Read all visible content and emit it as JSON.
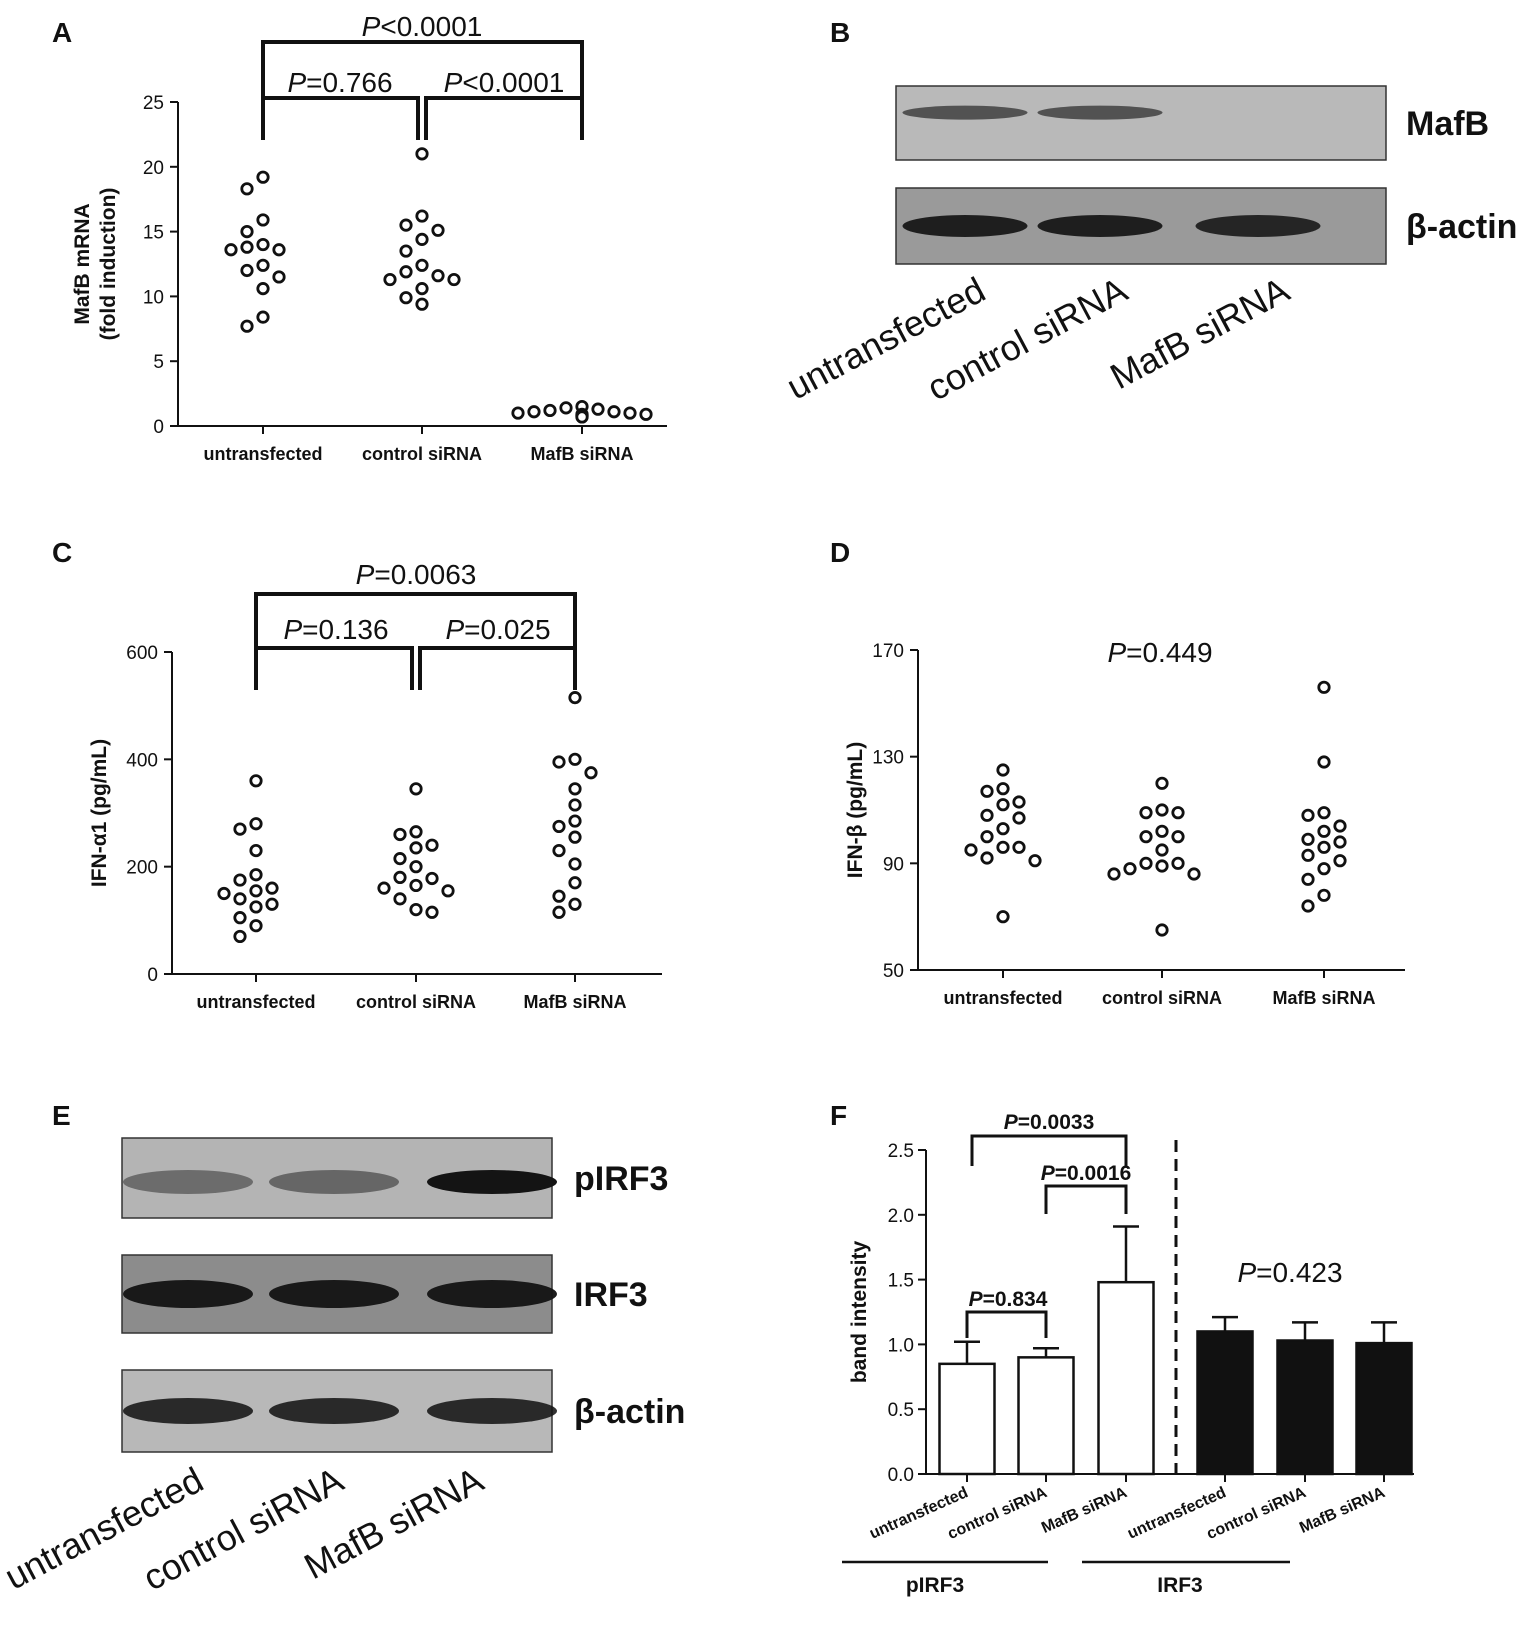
{
  "panel_letters": [
    "A",
    "B",
    "C",
    "D",
    "E",
    "F"
  ],
  "chart_data": [
    {
      "panel": "A",
      "type": "scatter",
      "ylabel": "MafB mRNA (fold induction)",
      "ylabel_lines": [
        "MafB mRNA",
        "(fold induction)"
      ],
      "ylim": [
        0,
        25
      ],
      "yticks": [
        0,
        5,
        10,
        15,
        20,
        25
      ],
      "categories": [
        "untransfected",
        "control siRNA",
        "MafB siRNA"
      ],
      "series": [
        {
          "values": [
            19.2,
            18.3,
            15.9,
            15.0,
            14.0,
            13.8,
            13.6,
            13.6,
            12.4,
            12.0,
            11.5,
            10.6,
            8.4,
            7.7
          ]
        },
        {
          "values": [
            21.0,
            16.2,
            15.5,
            15.1,
            14.4,
            13.5,
            12.4,
            11.9,
            11.6,
            11.3,
            11.3,
            10.6,
            9.9,
            9.4
          ]
        },
        {
          "values": [
            1.5,
            1.4,
            1.3,
            1.2,
            1.1,
            1.1,
            1.0,
            1.0,
            0.9,
            0.9,
            0.8,
            0.8,
            0.7,
            0.7
          ]
        }
      ],
      "comparisons": [
        {
          "pair": [
            0,
            2
          ],
          "p": "<0.0001"
        },
        {
          "pair": [
            0,
            1
          ],
          "p": "=0.766"
        },
        {
          "pair": [
            1,
            2
          ],
          "p": "<0.0001"
        }
      ]
    },
    {
      "panel": "C",
      "type": "scatter",
      "ylabel": "IFN-α1 (pg/mL)",
      "ylim": [
        0,
        600
      ],
      "yticks": [
        0,
        200,
        400,
        600
      ],
      "categories": [
        "untransfected",
        "control siRNA",
        "MafB siRNA"
      ],
      "series": [
        {
          "values": [
            360,
            280,
            270,
            230,
            185,
            175,
            160,
            155,
            150,
            140,
            130,
            125,
            105,
            90,
            70
          ]
        },
        {
          "values": [
            345,
            265,
            260,
            240,
            235,
            215,
            200,
            180,
            178,
            165,
            160,
            155,
            140,
            120,
            115
          ]
        },
        {
          "values": [
            515,
            400,
            395,
            375,
            345,
            315,
            285,
            275,
            255,
            230,
            205,
            170,
            145,
            130,
            115
          ]
        }
      ],
      "comparisons": [
        {
          "pair": [
            0,
            2
          ],
          "p": "=0.0063"
        },
        {
          "pair": [
            0,
            1
          ],
          "p": "=0.136"
        },
        {
          "pair": [
            1,
            2
          ],
          "p": "=0.025"
        }
      ]
    },
    {
      "panel": "D",
      "type": "scatter",
      "ylabel": "IFN-β (pg/mL)",
      "ylim": [
        50,
        170
      ],
      "yticks": [
        50,
        90,
        130,
        170
      ],
      "categories": [
        "untransfected",
        "control siRNA",
        "MafB siRNA"
      ],
      "series": [
        {
          "values": [
            125,
            118,
            117,
            113,
            112,
            108,
            107,
            103,
            100,
            96,
            96,
            95,
            92,
            91,
            70
          ]
        },
        {
          "values": [
            120,
            110,
            109,
            109,
            102,
            100,
            100,
            95,
            90,
            90,
            89,
            88,
            86,
            86,
            65
          ]
        },
        {
          "values": [
            156,
            128,
            109,
            108,
            104,
            102,
            99,
            98,
            96,
            93,
            91,
            88,
            84,
            78,
            74
          ]
        }
      ],
      "annotation": "=0.449"
    },
    {
      "panel": "F",
      "type": "bar",
      "ylabel": "band intensity",
      "ylim": [
        0,
        2.5
      ],
      "yticks": [
        "0.0",
        "0.5",
        "1.0",
        "1.5",
        "2.0",
        "2.5"
      ],
      "categories": [
        "untransfected",
        "control siRNA",
        "MafB siRNA",
        "untransfected",
        "control siRNA",
        "MafB siRNA"
      ],
      "values": [
        0.85,
        0.9,
        1.48,
        1.1,
        1.03,
        1.01
      ],
      "errors": [
        0.17,
        0.07,
        0.43,
        0.11,
        0.14,
        0.16
      ],
      "fills": [
        "white",
        "white",
        "white",
        "black",
        "black",
        "black"
      ],
      "groups": [
        {
          "label": "pIRF3",
          "members": [
            0,
            1,
            2
          ]
        },
        {
          "label": "IRF3",
          "members": [
            3,
            4,
            5
          ]
        }
      ],
      "comparisons": [
        {
          "pair": [
            0,
            2
          ],
          "p": "=0.0033"
        },
        {
          "pair": [
            1,
            2
          ],
          "p": "=0.0016"
        },
        {
          "pair": [
            0,
            1
          ],
          "p": "=0.834"
        }
      ],
      "annotation": "=0.423"
    }
  ],
  "blot_B": {
    "lanes": [
      "untransfected",
      "control siRNA",
      "MafB siRNA"
    ],
    "rows": [
      {
        "label": "MafB",
        "intensity": [
          0.55,
          0.55,
          0.0
        ]
      },
      {
        "label": "β-actin",
        "intensity": [
          0.9,
          0.9,
          0.85
        ]
      }
    ]
  },
  "blot_E": {
    "lanes": [
      "untransfected",
      "control siRNA",
      "MafB siRNA"
    ],
    "rows": [
      {
        "label": "pIRF3",
        "intensity": [
          0.35,
          0.4,
          1.0
        ]
      },
      {
        "label": "IRF3",
        "intensity": [
          0.95,
          0.95,
          0.95
        ]
      },
      {
        "label": "β-actin",
        "intensity": [
          0.85,
          0.85,
          0.85
        ]
      }
    ]
  },
  "p_prefix": "P"
}
